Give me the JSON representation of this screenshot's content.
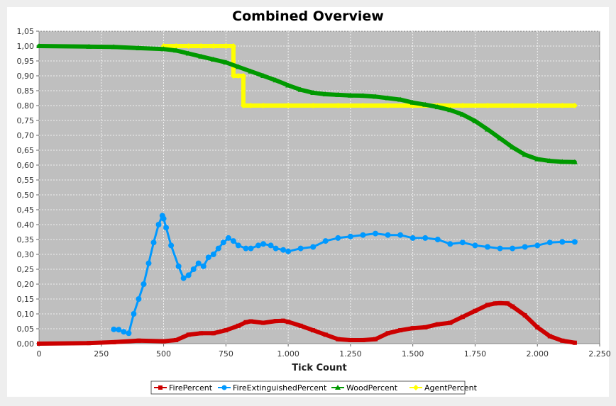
{
  "chart_data": {
    "type": "line",
    "title": "Combined Overview",
    "xlabel": "Tick Count",
    "ylabel": "",
    "xlim": [
      0,
      2250
    ],
    "ylim": [
      0,
      1.05
    ],
    "x_ticks": [
      0,
      250,
      500,
      750,
      1000,
      1250,
      1500,
      1750,
      2000,
      2250
    ],
    "x_tick_labels": [
      "0",
      "250",
      "500",
      "750",
      "1.000",
      "1.250",
      "1.500",
      "1.750",
      "2.000",
      "2.250"
    ],
    "y_ticks": [
      0,
      0.05,
      0.1,
      0.15,
      0.2,
      0.25,
      0.3,
      0.35,
      0.4,
      0.45,
      0.5,
      0.55,
      0.6,
      0.65,
      0.7,
      0.75,
      0.8,
      0.85,
      0.9,
      0.95,
      1.0,
      1.05
    ],
    "y_tick_labels": [
      "0,00",
      "0,05",
      "0,10",
      "0,15",
      "0,20",
      "0,25",
      "0,30",
      "0,35",
      "0,40",
      "0,45",
      "0,50",
      "0,55",
      "0,60",
      "0,65",
      "0,70",
      "0,75",
      "0,80",
      "0,85",
      "0,90",
      "0,95",
      "1,00",
      "1,05"
    ],
    "grid": true,
    "legend_position": "bottom",
    "series": [
      {
        "name": "FirePercent",
        "color": "#cc0000",
        "marker": "square",
        "x": [
          0,
          200,
          300,
          400,
          500,
          550,
          600,
          650,
          700,
          750,
          800,
          830,
          850,
          900,
          950,
          980,
          1000,
          1050,
          1100,
          1150,
          1200,
          1250,
          1300,
          1350,
          1400,
          1450,
          1500,
          1550,
          1600,
          1650,
          1700,
          1750,
          1800,
          1830,
          1850,
          1880,
          1900,
          1950,
          2000,
          2050,
          2100,
          2150
        ],
        "y": [
          0.0,
          0.002,
          0.005,
          0.01,
          0.008,
          0.012,
          0.03,
          0.035,
          0.035,
          0.045,
          0.06,
          0.072,
          0.075,
          0.07,
          0.076,
          0.077,
          0.073,
          0.06,
          0.045,
          0.03,
          0.015,
          0.012,
          0.012,
          0.015,
          0.035,
          0.045,
          0.052,
          0.055,
          0.065,
          0.07,
          0.09,
          0.11,
          0.13,
          0.135,
          0.136,
          0.135,
          0.125,
          0.095,
          0.055,
          0.025,
          0.01,
          0.003
        ]
      },
      {
        "name": "FireExtinguishedPercent",
        "color": "#0099ff",
        "marker": "circle",
        "x": [
          300,
          320,
          340,
          360,
          380,
          400,
          420,
          440,
          460,
          480,
          495,
          500,
          510,
          530,
          560,
          580,
          600,
          620,
          640,
          660,
          680,
          700,
          720,
          740,
          760,
          780,
          800,
          830,
          850,
          880,
          900,
          930,
          950,
          980,
          1000,
          1050,
          1100,
          1150,
          1200,
          1250,
          1300,
          1350,
          1400,
          1450,
          1500,
          1550,
          1600,
          1650,
          1700,
          1750,
          1800,
          1850,
          1900,
          1950,
          2000,
          2050,
          2100,
          2150
        ],
        "y": [
          0.048,
          0.047,
          0.04,
          0.035,
          0.1,
          0.15,
          0.2,
          0.27,
          0.34,
          0.4,
          0.43,
          0.42,
          0.39,
          0.33,
          0.26,
          0.22,
          0.23,
          0.25,
          0.27,
          0.26,
          0.29,
          0.3,
          0.32,
          0.34,
          0.355,
          0.345,
          0.33,
          0.32,
          0.32,
          0.33,
          0.335,
          0.33,
          0.32,
          0.315,
          0.31,
          0.32,
          0.325,
          0.345,
          0.355,
          0.36,
          0.365,
          0.37,
          0.365,
          0.365,
          0.355,
          0.355,
          0.35,
          0.335,
          0.34,
          0.33,
          0.325,
          0.32,
          0.32,
          0.325,
          0.33,
          0.34,
          0.342,
          0.342
        ]
      },
      {
        "name": "WoodPercent",
        "color": "#009900",
        "marker": "triangle",
        "x": [
          0,
          200,
          300,
          400,
          500,
          550,
          600,
          650,
          700,
          750,
          800,
          850,
          900,
          950,
          1000,
          1050,
          1100,
          1150,
          1200,
          1250,
          1300,
          1350,
          1400,
          1450,
          1500,
          1550,
          1600,
          1650,
          1700,
          1750,
          1800,
          1850,
          1900,
          1950,
          2000,
          2050,
          2100,
          2150
        ],
        "y": [
          1.0,
          0.998,
          0.997,
          0.993,
          0.99,
          0.985,
          0.975,
          0.965,
          0.955,
          0.945,
          0.93,
          0.915,
          0.9,
          0.885,
          0.868,
          0.853,
          0.843,
          0.838,
          0.836,
          0.834,
          0.833,
          0.83,
          0.825,
          0.82,
          0.81,
          0.803,
          0.795,
          0.785,
          0.77,
          0.748,
          0.72,
          0.69,
          0.66,
          0.635,
          0.62,
          0.614,
          0.611,
          0.61
        ]
      },
      {
        "name": "AgentPercent",
        "color": "#ffff00",
        "marker": "diamond",
        "x": [
          500,
          550,
          600,
          650,
          700,
          750,
          780,
          780,
          800,
          820,
          820,
          850,
          900,
          1000,
          1100,
          1200,
          1300,
          1400,
          1500,
          1600,
          1700,
          1800,
          1900,
          2000,
          2100,
          2150
        ],
        "y": [
          1.0,
          1.0,
          1.0,
          1.0,
          1.0,
          1.0,
          1.0,
          0.9,
          0.9,
          0.9,
          0.8,
          0.8,
          0.8,
          0.8,
          0.8,
          0.8,
          0.8,
          0.8,
          0.8,
          0.8,
          0.8,
          0.8,
          0.8,
          0.8,
          0.8,
          0.8
        ]
      }
    ]
  }
}
